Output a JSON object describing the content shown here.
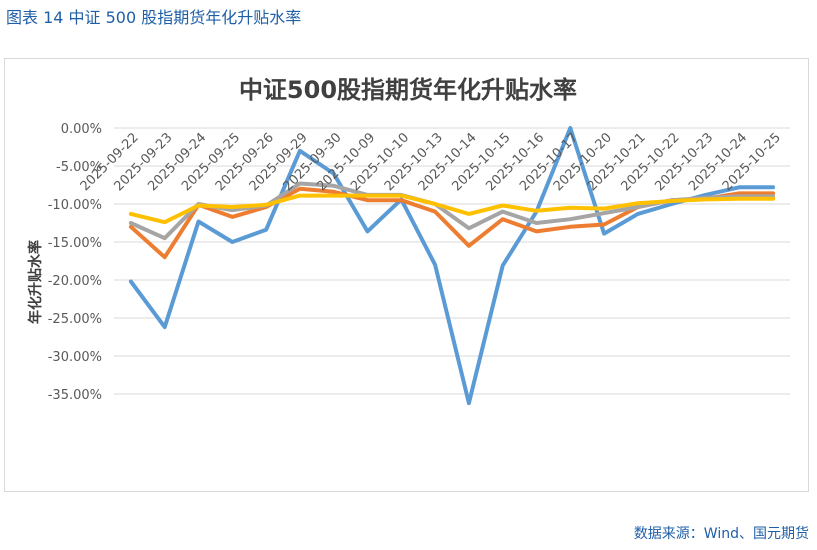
{
  "caption": "图表 14  中证 500 股指期货年化升贴水率",
  "source": "数据来源：Wind、国元期货",
  "colors": {
    "blue": "#5b9bd5",
    "orange": "#ed7d31",
    "gray": "#a5a5a5",
    "gold": "#ffc000",
    "caption": "#1f5fa8"
  },
  "chart_data": {
    "type": "line",
    "title": "中证500股指期货年化升贴水率",
    "ylabel": "年化升贴水率",
    "xlabel": "",
    "ylim": [
      -0.35,
      0
    ],
    "yticks": [
      "0.00%",
      "-5.00%",
      "-10.00%",
      "-15.00%",
      "-20.00%",
      "-25.00%",
      "-30.00%",
      "-35.00%"
    ],
    "categories": [
      "2025-09-22",
      "2025-09-23",
      "2025-09-24",
      "2025-09-25",
      "2025-09-26",
      "2025-09-29",
      "2025-09-30",
      "2025-10-09",
      "2025-10-10",
      "2025-10-13",
      "2025-10-14",
      "2025-10-15",
      "2025-10-16",
      "2025-10-17",
      "2025-10-20",
      "2025-10-21",
      "2025-10-22",
      "2025-10-23",
      "2025-10-24",
      "2025-10-25"
    ],
    "grid": true,
    "legend": "bottom",
    "series": [
      {
        "color": "#5b9bd5",
        "values": [
          -0.202,
          -0.262,
          -0.123,
          -0.15,
          -0.134,
          -0.03,
          -0.06,
          -0.136,
          -0.094,
          -0.18,
          -0.362,
          -0.181,
          -0.11,
          0.0,
          -0.139,
          -0.113,
          -0.1,
          -0.088,
          -0.078,
          -0.078
        ]
      },
      {
        "color": "#ed7d31",
        "values": [
          -0.13,
          -0.17,
          -0.101,
          -0.117,
          -0.104,
          -0.08,
          -0.084,
          -0.095,
          -0.095,
          -0.11,
          -0.155,
          -0.12,
          -0.136,
          -0.13,
          -0.127,
          -0.104,
          -0.095,
          -0.093,
          -0.086,
          -0.086
        ]
      },
      {
        "color": "#a5a5a5",
        "values": [
          -0.125,
          -0.145,
          -0.1,
          -0.108,
          -0.102,
          -0.073,
          -0.076,
          -0.088,
          -0.088,
          -0.1,
          -0.132,
          -0.11,
          -0.125,
          -0.12,
          -0.112,
          -0.104,
          -0.095,
          -0.092,
          -0.09,
          -0.09
        ]
      },
      {
        "color": "#ffc000",
        "values": [
          -0.113,
          -0.124,
          -0.102,
          -0.104,
          -0.101,
          -0.089,
          -0.089,
          -0.089,
          -0.089,
          -0.1,
          -0.113,
          -0.102,
          -0.109,
          -0.105,
          -0.106,
          -0.099,
          -0.096,
          -0.094,
          -0.093,
          -0.093
        ]
      }
    ]
  }
}
